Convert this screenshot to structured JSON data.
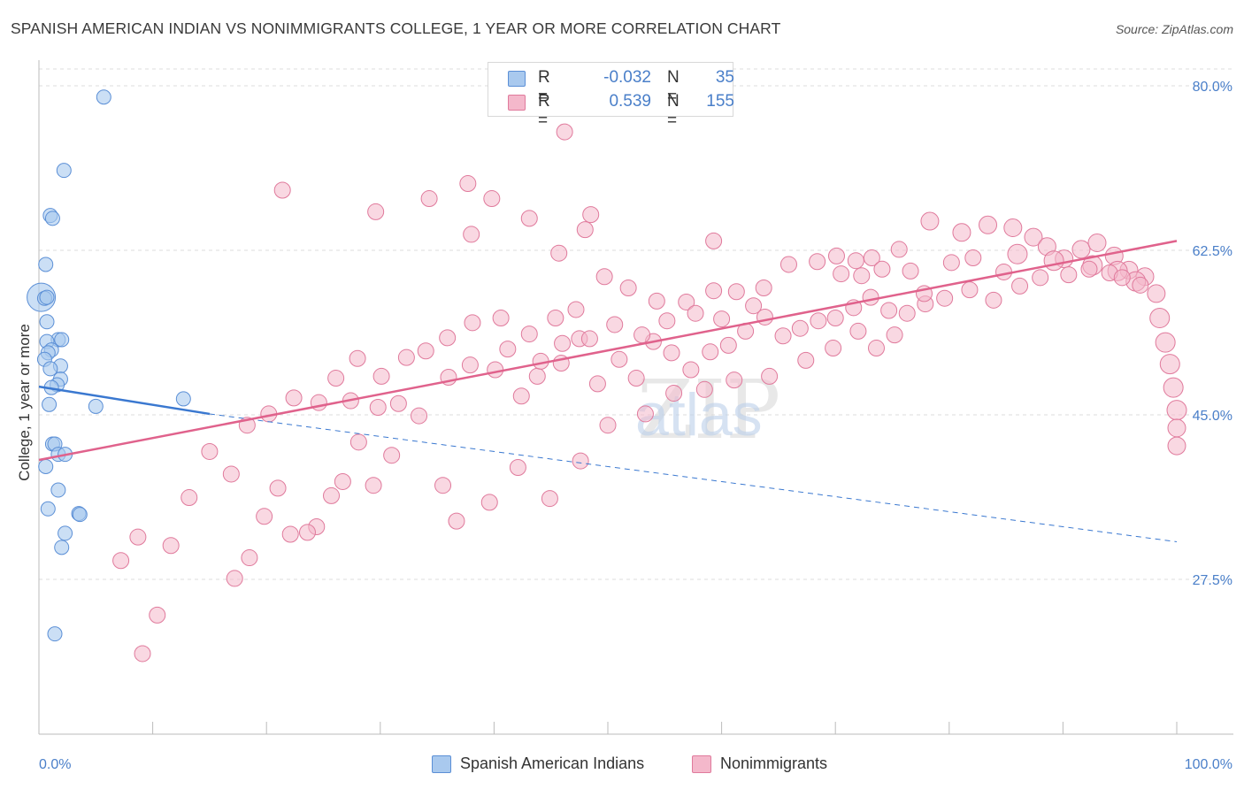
{
  "title": "SPANISH AMERICAN INDIAN VS NONIMMIGRANTS COLLEGE, 1 YEAR OR MORE CORRELATION CHART",
  "source": "Source: ZipAtlas.com",
  "watermark": "ZIPatlas",
  "legend": {
    "rows": [
      {
        "r_label": "R =",
        "r_value": "-0.032",
        "n_label": "N =",
        "n_value": "35"
      },
      {
        "r_label": "R =",
        "r_value": "0.539",
        "n_label": "N =",
        "n_value": "155"
      }
    ]
  },
  "bottom_legend": [
    "Spanish American Indians",
    "Nonimmigrants"
  ],
  "colors": {
    "blue_fill": "#a9c9ee",
    "blue_stroke": "#5b8fd6",
    "blue_line": "#3a78d0",
    "pink_fill": "#f4b8cb",
    "pink_stroke": "#e07a9c",
    "pink_line": "#e0628c",
    "tick_label": "#4a7fc9",
    "grid": "#dddddd"
  },
  "chart_data": {
    "type": "scatter",
    "title": "SPANISH AMERICAN INDIAN VS NONIMMIGRANTS COLLEGE, 1 YEAR OR MORE CORRELATION CHART",
    "xlabel": "",
    "ylabel": "College, 1 year or more",
    "xlim": [
      0,
      100
    ],
    "ylim": [
      10,
      85
    ],
    "x_tick_labels": [
      "0.0%",
      "100.0%"
    ],
    "y_ticks": [
      27.5,
      45.0,
      62.5,
      80.0
    ],
    "y_tick_labels": [
      "27.5%",
      "45.0%",
      "62.5%",
      "80.0%"
    ],
    "grid": true,
    "series": [
      {
        "name": "Spanish American Indians",
        "color": "#a9c9ee",
        "trend": {
          "x": [
            0,
            15
          ],
          "y": [
            48.0,
            45.1
          ],
          "dashed_to": [
            100,
            31.5
          ]
        },
        "points": [
          [
            0.2,
            57.5,
            16
          ],
          [
            5.7,
            78.8,
            8
          ],
          [
            2.2,
            71.0,
            8
          ],
          [
            1.0,
            66.2,
            8
          ],
          [
            1.2,
            65.9,
            8
          ],
          [
            0.6,
            61.0,
            8
          ],
          [
            0.5,
            57.4,
            8
          ],
          [
            0.7,
            57.5,
            8
          ],
          [
            0.7,
            54.9,
            8
          ],
          [
            1.7,
            53.0,
            8
          ],
          [
            2.0,
            53.0,
            8
          ],
          [
            0.7,
            52.8,
            8
          ],
          [
            1.1,
            51.9,
            8
          ],
          [
            0.8,
            51.6,
            8
          ],
          [
            0.5,
            50.9,
            8
          ],
          [
            1.9,
            50.2,
            8
          ],
          [
            1.0,
            49.9,
            8
          ],
          [
            1.9,
            48.8,
            8
          ],
          [
            1.6,
            48.2,
            8
          ],
          [
            1.1,
            47.9,
            8
          ],
          [
            0.9,
            46.1,
            8
          ],
          [
            12.7,
            46.7,
            8
          ],
          [
            5.0,
            45.9,
            8
          ],
          [
            1.2,
            41.9,
            8
          ],
          [
            1.4,
            41.9,
            8
          ],
          [
            1.7,
            40.8,
            8
          ],
          [
            2.3,
            40.8,
            8
          ],
          [
            0.6,
            39.5,
            8
          ],
          [
            1.7,
            37.0,
            8
          ],
          [
            0.8,
            35.0,
            8
          ],
          [
            3.5,
            34.5,
            8
          ],
          [
            3.6,
            34.4,
            8
          ],
          [
            2.3,
            32.4,
            8
          ],
          [
            2.0,
            30.9,
            8
          ],
          [
            1.4,
            21.7,
            8
          ]
        ]
      },
      {
        "name": "Nonimmigrants",
        "color": "#f4b8cb",
        "trend": {
          "x": [
            0,
            100
          ],
          "y": [
            40.2,
            63.5
          ]
        },
        "points": [
          [
            46.2,
            75.1,
            9
          ],
          [
            21.4,
            68.9,
            9
          ],
          [
            37.7,
            69.6,
            9
          ],
          [
            34.3,
            68.0,
            9
          ],
          [
            39.8,
            68.0,
            9
          ],
          [
            29.6,
            66.6,
            9
          ],
          [
            43.1,
            65.9,
            9
          ],
          [
            48.5,
            66.3,
            9
          ],
          [
            38.0,
            64.2,
            9
          ],
          [
            48.0,
            64.7,
            9
          ],
          [
            45.7,
            62.2,
            9
          ],
          [
            59.3,
            63.5,
            9
          ],
          [
            70.1,
            61.9,
            9
          ],
          [
            71.8,
            61.4,
            9
          ],
          [
            73.2,
            61.7,
            9
          ],
          [
            75.6,
            62.6,
            9
          ],
          [
            78.3,
            65.6,
            10
          ],
          [
            81.1,
            64.4,
            10
          ],
          [
            83.4,
            65.2,
            10
          ],
          [
            85.6,
            64.9,
            10
          ],
          [
            87.4,
            63.9,
            10
          ],
          [
            88.6,
            62.9,
            10
          ],
          [
            90.1,
            61.6,
            10
          ],
          [
            91.6,
            62.6,
            10
          ],
          [
            93.0,
            63.3,
            10
          ],
          [
            94.5,
            61.9,
            10
          ],
          [
            95.8,
            60.4,
            10
          ],
          [
            97.2,
            59.7,
            10
          ],
          [
            98.2,
            57.9,
            10
          ],
          [
            98.5,
            55.3,
            11
          ],
          [
            99.0,
            52.7,
            11
          ],
          [
            99.4,
            50.4,
            11
          ],
          [
            99.7,
            47.9,
            11
          ],
          [
            100.0,
            45.5,
            11
          ],
          [
            100.0,
            43.6,
            10
          ],
          [
            100.0,
            41.7,
            10
          ],
          [
            86.0,
            62.1,
            11
          ],
          [
            89.2,
            61.4,
            11
          ],
          [
            92.6,
            60.9,
            11
          ],
          [
            94.8,
            60.3,
            11
          ],
          [
            96.4,
            59.2,
            11
          ],
          [
            84.8,
            60.2,
            9
          ],
          [
            82.1,
            61.7,
            9
          ],
          [
            80.2,
            61.2,
            9
          ],
          [
            76.6,
            60.3,
            9
          ],
          [
            74.1,
            60.5,
            9
          ],
          [
            72.3,
            59.8,
            9
          ],
          [
            70.5,
            60.0,
            9
          ],
          [
            68.4,
            61.3,
            9
          ],
          [
            65.9,
            61.0,
            9
          ],
          [
            63.7,
            58.5,
            9
          ],
          [
            61.3,
            58.1,
            9
          ],
          [
            59.3,
            58.2,
            9
          ],
          [
            56.9,
            57.0,
            9
          ],
          [
            54.3,
            57.1,
            9
          ],
          [
            51.8,
            58.5,
            9
          ],
          [
            49.7,
            59.7,
            9
          ],
          [
            47.2,
            56.2,
            9
          ],
          [
            45.4,
            55.3,
            9
          ],
          [
            43.1,
            53.6,
            9
          ],
          [
            40.6,
            55.3,
            9
          ],
          [
            38.1,
            54.8,
            9
          ],
          [
            35.9,
            53.2,
            9
          ],
          [
            34.0,
            51.8,
            9
          ],
          [
            32.3,
            51.1,
            9
          ],
          [
            30.1,
            49.1,
            9
          ],
          [
            28.0,
            51.0,
            9
          ],
          [
            26.1,
            48.9,
            9
          ],
          [
            24.6,
            46.3,
            9
          ],
          [
            22.4,
            46.8,
            9
          ],
          [
            20.2,
            45.1,
            9
          ],
          [
            18.3,
            43.9,
            9
          ],
          [
            16.9,
            38.7,
            9
          ],
          [
            15.0,
            41.1,
            9
          ],
          [
            13.2,
            36.2,
            9
          ],
          [
            11.6,
            31.1,
            9
          ],
          [
            10.4,
            23.7,
            9
          ],
          [
            9.1,
            19.6,
            9
          ],
          [
            8.7,
            32.0,
            9
          ],
          [
            7.2,
            29.5,
            9
          ],
          [
            31.0,
            40.7,
            9
          ],
          [
            29.4,
            37.5,
            9
          ],
          [
            28.1,
            42.1,
            9
          ],
          [
            26.7,
            37.9,
            9
          ],
          [
            25.7,
            36.4,
            9
          ],
          [
            24.4,
            33.1,
            9
          ],
          [
            23.6,
            32.5,
            9
          ],
          [
            22.1,
            32.3,
            9
          ],
          [
            21.0,
            37.2,
            9
          ],
          [
            19.8,
            34.2,
            9
          ],
          [
            18.5,
            29.8,
            9
          ],
          [
            17.2,
            27.6,
            9
          ],
          [
            36.7,
            33.7,
            9
          ],
          [
            35.5,
            37.5,
            9
          ],
          [
            39.6,
            35.7,
            9
          ],
          [
            42.1,
            39.4,
            9
          ],
          [
            44.9,
            36.1,
            9
          ],
          [
            47.6,
            40.1,
            9
          ],
          [
            50.0,
            43.9,
            9
          ],
          [
            53.3,
            45.1,
            9
          ],
          [
            55.8,
            47.3,
            9
          ],
          [
            58.5,
            47.7,
            9
          ],
          [
            61.1,
            48.7,
            9
          ],
          [
            64.2,
            49.1,
            9
          ],
          [
            67.4,
            50.8,
            9
          ],
          [
            69.8,
            52.1,
            9
          ],
          [
            72.0,
            53.9,
            9
          ],
          [
            73.6,
            52.1,
            9
          ],
          [
            75.2,
            53.5,
            9
          ],
          [
            77.9,
            56.8,
            9
          ],
          [
            79.6,
            57.4,
            9
          ],
          [
            81.8,
            58.3,
            9
          ],
          [
            83.9,
            57.2,
            9
          ],
          [
            86.2,
            58.7,
            9
          ],
          [
            88.0,
            59.6,
            9
          ],
          [
            90.5,
            59.9,
            9
          ],
          [
            92.3,
            60.5,
            9
          ],
          [
            94.1,
            60.1,
            9
          ],
          [
            95.2,
            59.6,
            9
          ],
          [
            96.8,
            58.8,
            9
          ],
          [
            41.2,
            52.0,
            9
          ],
          [
            43.8,
            49.1,
            9
          ],
          [
            45.9,
            50.5,
            9
          ],
          [
            47.5,
            53.1,
            9
          ],
          [
            49.1,
            48.3,
            9
          ],
          [
            51.0,
            50.9,
            9
          ],
          [
            52.5,
            48.9,
            9
          ],
          [
            54.0,
            52.8,
            9
          ],
          [
            55.6,
            51.6,
            9
          ],
          [
            57.3,
            49.8,
            9
          ],
          [
            59.0,
            51.7,
            9
          ],
          [
            60.6,
            52.4,
            9
          ],
          [
            62.1,
            53.9,
            9
          ],
          [
            63.8,
            55.4,
            9
          ],
          [
            65.4,
            53.4,
            9
          ],
          [
            66.9,
            54.2,
            9
          ],
          [
            68.5,
            55.0,
            9
          ],
          [
            70.0,
            55.3,
            9
          ],
          [
            71.6,
            56.4,
            9
          ],
          [
            73.1,
            57.5,
            9
          ],
          [
            74.7,
            56.1,
            9
          ],
          [
            76.3,
            55.8,
            9
          ],
          [
            77.8,
            57.9,
            9
          ],
          [
            62.8,
            56.6,
            9
          ],
          [
            60.0,
            55.2,
            9
          ],
          [
            57.7,
            55.8,
            9
          ],
          [
            55.2,
            55.0,
            9
          ],
          [
            53.0,
            53.5,
            9
          ],
          [
            50.6,
            54.6,
            9
          ],
          [
            48.4,
            53.1,
            9
          ],
          [
            46.0,
            52.6,
            9
          ],
          [
            44.1,
            50.7,
            9
          ],
          [
            42.4,
            47.0,
            9
          ],
          [
            40.1,
            49.8,
            9
          ],
          [
            37.9,
            50.3,
            9
          ],
          [
            36.0,
            49.0,
            9
          ],
          [
            33.4,
            44.9,
            9
          ],
          [
            31.6,
            46.2,
            9
          ],
          [
            29.8,
            45.8,
            9
          ],
          [
            27.4,
            46.5,
            9
          ]
        ]
      }
    ]
  }
}
